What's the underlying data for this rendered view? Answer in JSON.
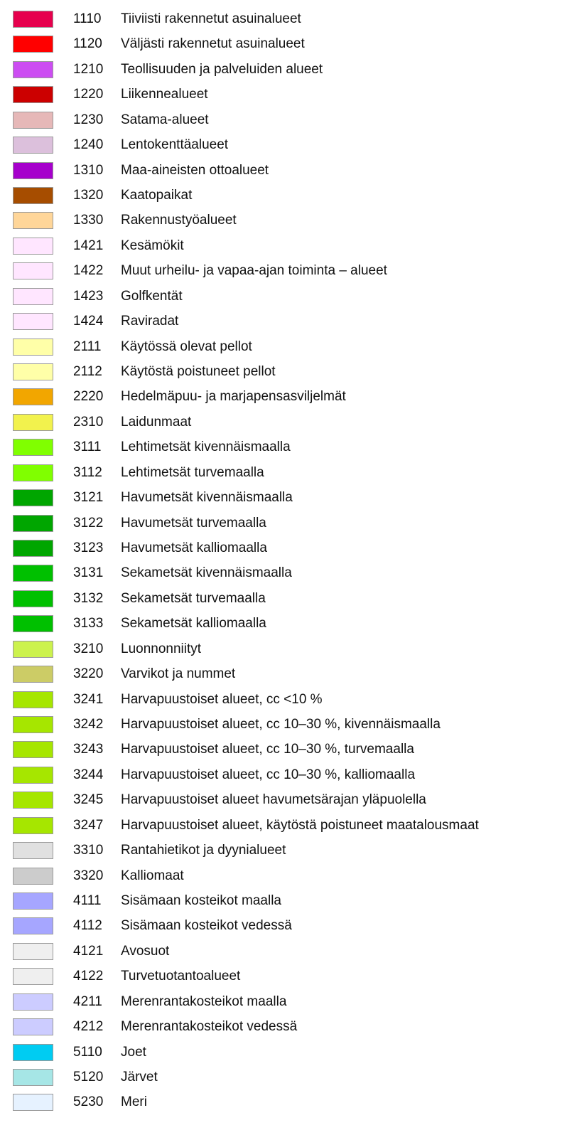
{
  "legend": {
    "items": [
      {
        "code": "1110",
        "label": "Tiiviisti rakennetut asuinalueet",
        "color": "#e6004d"
      },
      {
        "code": "1120",
        "label": "Väljästi rakennetut asuinalueet",
        "color": "#ff0000"
      },
      {
        "code": "1210",
        "label": "Teollisuuden ja palveluiden alueet",
        "color": "#cc4df2"
      },
      {
        "code": "1220",
        "label": "Liikennealueet",
        "color": "#cc0000"
      },
      {
        "code": "1230",
        "label": "Satama-alueet",
        "color": "#e6b8b8"
      },
      {
        "code": "1240",
        "label": "Lentokenttäalueet",
        "color": "#dcc0dc"
      },
      {
        "code": "1310",
        "label": "Maa-aineisten ottoalueet",
        "color": "#a600cc"
      },
      {
        "code": "1320",
        "label": "Kaatopaikat",
        "color": "#a64d00"
      },
      {
        "code": "1330",
        "label": "Rakennustyöalueet",
        "color": "#ffd699"
      },
      {
        "code": "1421",
        "label": "Kesämökit",
        "color": "#ffe6ff"
      },
      {
        "code": "1422",
        "label": "Muut urheilu- ja vapaa-ajan toiminta – alueet",
        "color": "#ffe6ff"
      },
      {
        "code": "1423",
        "label": "Golfkentät",
        "color": "#ffe6ff"
      },
      {
        "code": "1424",
        "label": "Raviradat",
        "color": "#ffe6ff"
      },
      {
        "code": "2111",
        "label": "Käytössä olevat pellot",
        "color": "#ffffa8"
      },
      {
        "code": "2112",
        "label": "Käytöstä poistuneet pellot",
        "color": "#ffffa8"
      },
      {
        "code": "2220",
        "label": "Hedelmäpuu- ja marjapensasviljelmät",
        "color": "#f2a600"
      },
      {
        "code": "2310",
        "label": "Laidunmaat",
        "color": "#f2f24d"
      },
      {
        "code": "3111",
        "label": "Lehtimetsät kivennäismaalla",
        "color": "#80ff00"
      },
      {
        "code": "3112",
        "label": "Lehtimetsät turvemaalla",
        "color": "#80ff00"
      },
      {
        "code": "3121",
        "label": "Havumetsät kivennäismaalla",
        "color": "#00a600"
      },
      {
        "code": "3122",
        "label": "Havumetsät turvemaalla",
        "color": "#00a600"
      },
      {
        "code": "3123",
        "label": "Havumetsät kalliomaalla",
        "color": "#00a600"
      },
      {
        "code": "3131",
        "label": "Sekametsät kivennäismaalla",
        "color": "#00c000"
      },
      {
        "code": "3132",
        "label": "Sekametsät turvemaalla",
        "color": "#00c000"
      },
      {
        "code": "3133",
        "label": "Sekametsät kalliomaalla",
        "color": "#00c000"
      },
      {
        "code": "3210",
        "label": "Luonnonniityt",
        "color": "#ccf24d"
      },
      {
        "code": "3220",
        "label": "Varvikot ja nummet",
        "color": "#cccc66"
      },
      {
        "code": "3241",
        "label": "Harvapuustoiset alueet, cc <10 %",
        "color": "#a6e600"
      },
      {
        "code": "3242",
        "label": "Harvapuustoiset alueet, cc 10–30 %, kivennäismaalla",
        "color": "#a6e600"
      },
      {
        "code": "3243",
        "label": "Harvapuustoiset alueet, cc 10–30 %, turvemaalla",
        "color": "#a6e600"
      },
      {
        "code": "3244",
        "label": "Harvapuustoiset alueet, cc 10–30 %, kalliomaalla",
        "color": "#a6e600"
      },
      {
        "code": "3245",
        "label": "Harvapuustoiset alueet havumetsärajan yläpuolella",
        "color": "#a6e600"
      },
      {
        "code": "3247",
        "label": "Harvapuustoiset alueet, käytöstä poistuneet maatalousmaat",
        "color": "#a6e600"
      },
      {
        "code": "3310",
        "label": "Rantahietikot ja dyynialueet",
        "color": "#e0e0e0"
      },
      {
        "code": "3320",
        "label": "Kalliomaat",
        "color": "#cccccc"
      },
      {
        "code": "4111",
        "label": "Sisämaan kosteikot maalla",
        "color": "#a6a6ff"
      },
      {
        "code": "4112",
        "label": "Sisämaan kosteikot vedessä",
        "color": "#a6a6ff"
      },
      {
        "code": "4121",
        "label": "Avosuot",
        "color": "#efefef"
      },
      {
        "code": "4122",
        "label": "Turvetuotantoalueet",
        "color": "#efefef"
      },
      {
        "code": "4211",
        "label": "Merenrantakosteikot maalla",
        "color": "#ccccff"
      },
      {
        "code": "4212",
        "label": "Merenrantakosteikot vedessä",
        "color": "#ccccff"
      },
      {
        "code": "5110",
        "label": "Joet",
        "color": "#00ccf2"
      },
      {
        "code": "5120",
        "label": "Järvet",
        "color": "#a6e6e6"
      },
      {
        "code": "5230",
        "label": "Meri",
        "color": "#e6f2ff"
      }
    ]
  }
}
